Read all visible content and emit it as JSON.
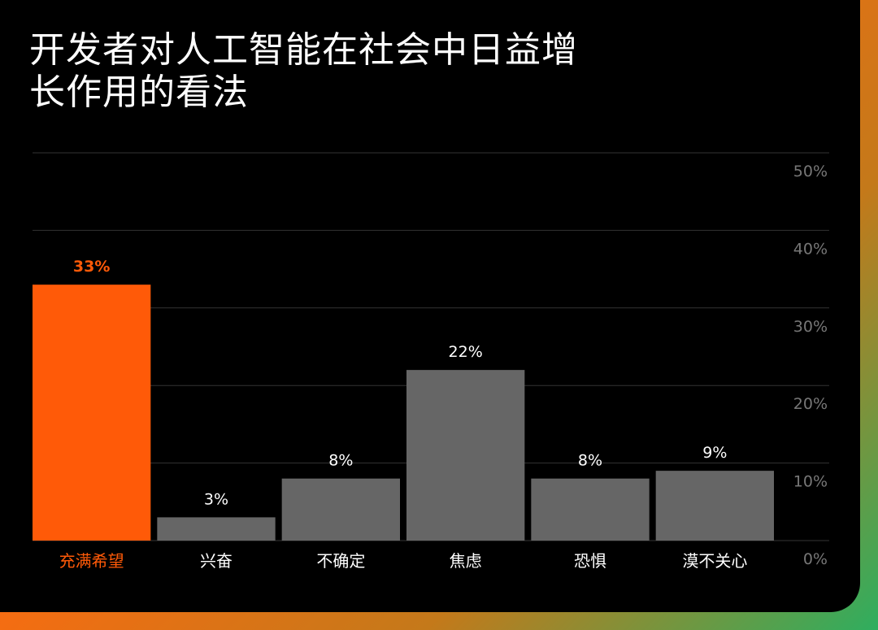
{
  "chart_data": {
    "type": "bar",
    "title": "开发者对人工智能在社会中日益增长作用的看法",
    "title_lines": [
      "开发者对人工智能在社会中日益增",
      "长作用的看法"
    ],
    "categories": [
      "充满希望",
      "兴奋",
      "不确定",
      "焦虑",
      "恐惧",
      "漠不关心"
    ],
    "values": [
      33,
      3,
      8,
      22,
      8,
      9
    ],
    "value_labels": [
      "33%",
      "3%",
      "8%",
      "22%",
      "8%",
      "9%"
    ],
    "highlight_index": 0,
    "ylim": [
      0,
      50
    ],
    "y_ticks": [
      0,
      10,
      20,
      30,
      40,
      50
    ],
    "y_tick_labels": [
      "0%",
      "10%",
      "20%",
      "30%",
      "40%",
      "50%"
    ],
    "grid": true,
    "y_axis_side": "right",
    "xlabel": "",
    "ylabel": ""
  },
  "colors": {
    "background": "#000000",
    "highlight_bar": "#ff5a08",
    "bar": "#666666",
    "highlight_text": "#ff5a08",
    "text": "#ffffff",
    "tick_text": "#777777",
    "grid": "#333333"
  }
}
